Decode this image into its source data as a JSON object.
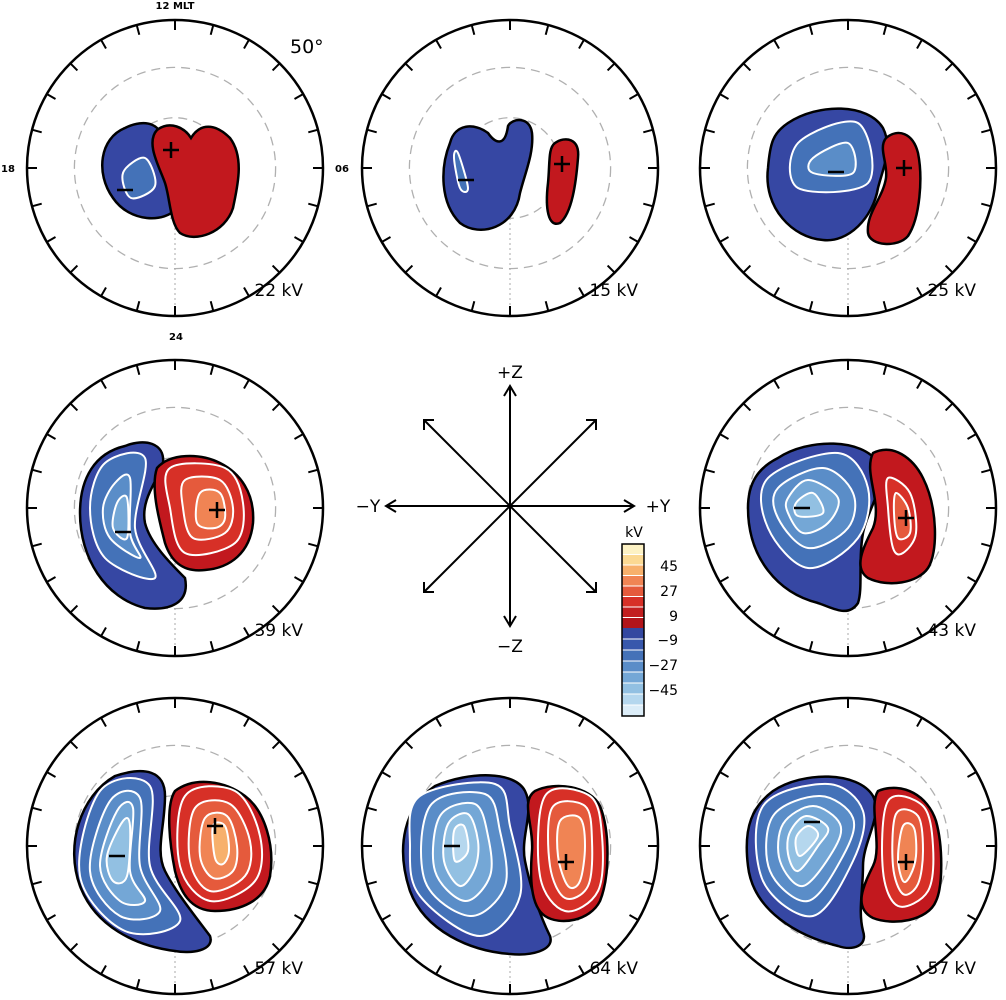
{
  "figure": {
    "mlt_labels": {
      "top": "12 MLT",
      "left": "18",
      "right": "06",
      "bottom": "24"
    },
    "latitude_label": "50°"
  },
  "panels": [
    {
      "id": "p1",
      "potential": "22 kV",
      "cells": 1,
      "imf": "top-left"
    },
    {
      "id": "p2",
      "potential": "15 kV",
      "cells": 1,
      "imf": "+Z"
    },
    {
      "id": "p3",
      "potential": "25 kV",
      "cells": 2,
      "imf": "top-right"
    },
    {
      "id": "p4",
      "potential": "39 kV",
      "cells": 3,
      "imf": "-Y"
    },
    {
      "id": "p5",
      "potential": "43 kV",
      "cells": 4,
      "imf": "+Y"
    },
    {
      "id": "p6",
      "potential": "57 kV",
      "cells": 5,
      "imf": "bottom-left"
    },
    {
      "id": "p7",
      "potential": "64 kV",
      "cells": 5,
      "imf": "-Z"
    },
    {
      "id": "p8",
      "potential": "57 kV",
      "cells": 5,
      "imf": "bottom-right"
    }
  ],
  "center_diagram": {
    "labels": {
      "plus_z": "+Z",
      "minus_z": "−Z",
      "plus_y": "+Y",
      "minus_y": "−Y"
    }
  },
  "colorbar": {
    "unit": "kV",
    "tick_labels": [
      "45",
      "27",
      "9",
      "−9",
      "−27",
      "−45"
    ],
    "positive_colors": [
      "#fdf2c4",
      "#fbd993",
      "#f7b06c",
      "#f08454",
      "#e55a3c",
      "#d73027",
      "#c21f20",
      "#b2141a"
    ],
    "negative_colors": [
      "#3448a0",
      "#3858ac",
      "#4472b8",
      "#5a8dc8",
      "#74a7d6",
      "#92c0e2",
      "#b5d7ee",
      "#dcedf8"
    ]
  },
  "colors": {
    "positive_outer": "#c2181e",
    "negative_outer": "#3647a3",
    "circle": "#000000",
    "latitude_ring": "#b0b0b0",
    "contour": "#ffffff"
  }
}
